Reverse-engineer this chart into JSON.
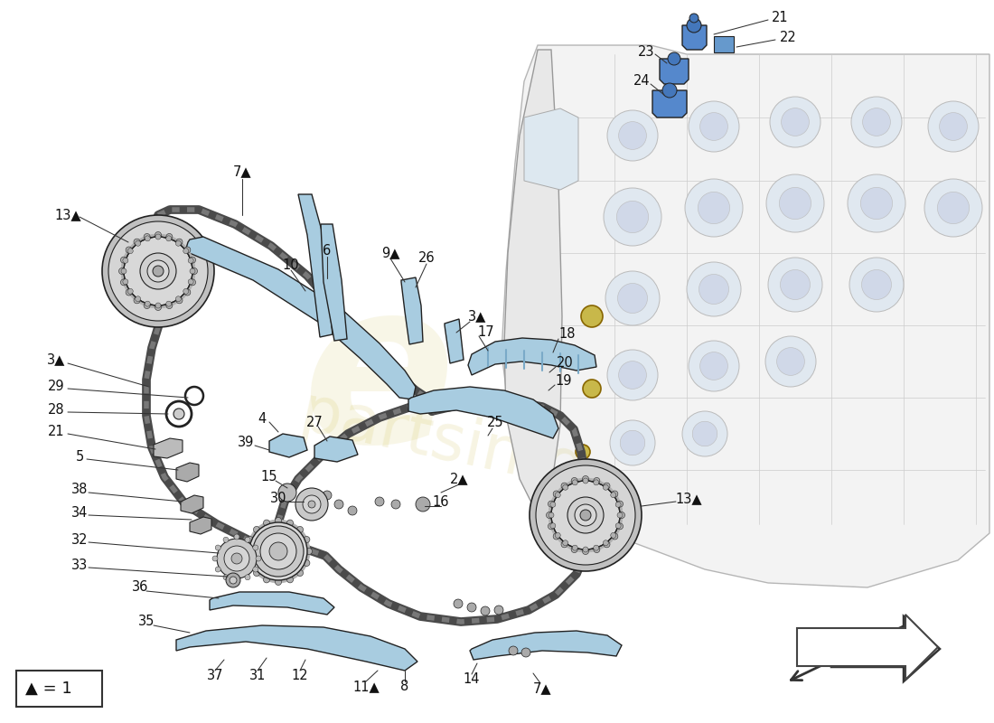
{
  "bg_color": "#ffffff",
  "blue_part": "#a8cce0",
  "blue_dark": "#6699bb",
  "blue_mid": "#88b8d0",
  "outline": "#222222",
  "gray_light": "#d8d8d8",
  "gray_mid": "#b0b0b0",
  "gray_dark": "#888888",
  "chain_color": "#555555",
  "engine_fill": "#f2f2f2",
  "engine_line": "#999999",
  "yellow_highlight": "#c8b84a",
  "watermark": "#c8b840",
  "text_color": "#111111",
  "font_size": 10.5,
  "triangle": "▲",
  "arrow_dir": "left",
  "legend_text": "= 1"
}
